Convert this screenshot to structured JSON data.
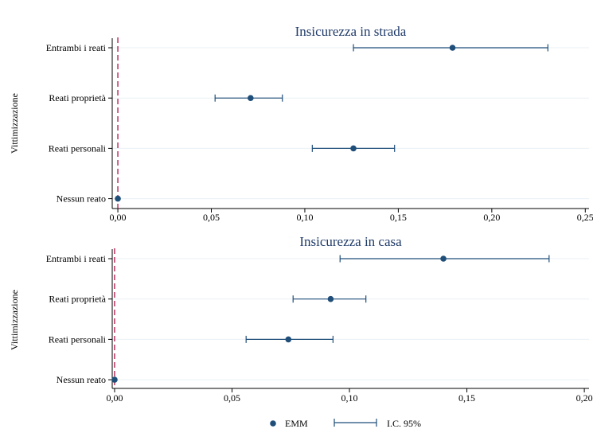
{
  "colors": {
    "series": "#1f4e79",
    "reference_line": "#b0124a",
    "gridline": "#eaf0f4",
    "axis": "#000000",
    "title": "#1f3a68"
  },
  "legend": {
    "placement": "bottom-center",
    "point_label": "EMM",
    "ci_label": "I.C. 95%"
  },
  "chart_data": [
    {
      "type": "scatter",
      "subtype": "dot-and-whisker",
      "title": "Insicurezza in strada",
      "ylabel": "Vittimizzazione",
      "xlabel": "",
      "categories": [
        "Entrambi i reati",
        "Reati proprietà",
        "Reati personali",
        "Nessun reato"
      ],
      "values": [
        0.179,
        0.071,
        0.126,
        0.0
      ],
      "ci_low": [
        0.126,
        0.052,
        0.104,
        0.0
      ],
      "ci_high": [
        0.23,
        0.088,
        0.148,
        0.0
      ],
      "xlim": [
        -0.003,
        0.252
      ],
      "xticks": [
        0,
        0.05,
        0.1,
        0.15,
        0.2,
        0.25
      ],
      "xtick_labels": [
        "0,00",
        "0,05",
        "0,10",
        "0,15",
        "0,20",
        "0,25"
      ],
      "reference_line_x": 0,
      "grid": true
    },
    {
      "type": "scatter",
      "subtype": "dot-and-whisker",
      "title": "Insicurezza in casa",
      "ylabel": "Vittimizzazione",
      "xlabel": "",
      "categories": [
        "Entrambi i reati",
        "Reati proprietà",
        "Reati personali",
        "Nessun reato"
      ],
      "values": [
        0.14,
        0.092,
        0.074,
        0.0
      ],
      "ci_low": [
        0.096,
        0.076,
        0.056,
        0.0
      ],
      "ci_high": [
        0.185,
        0.107,
        0.093,
        0.0
      ],
      "xlim": [
        -0.001,
        0.202
      ],
      "xticks": [
        0,
        0.05,
        0.1,
        0.15,
        0.2
      ],
      "xtick_labels": [
        "0,00",
        "0,05",
        "0,10",
        "0,15",
        "0,20"
      ],
      "reference_line_x": 0,
      "grid": true
    }
  ]
}
